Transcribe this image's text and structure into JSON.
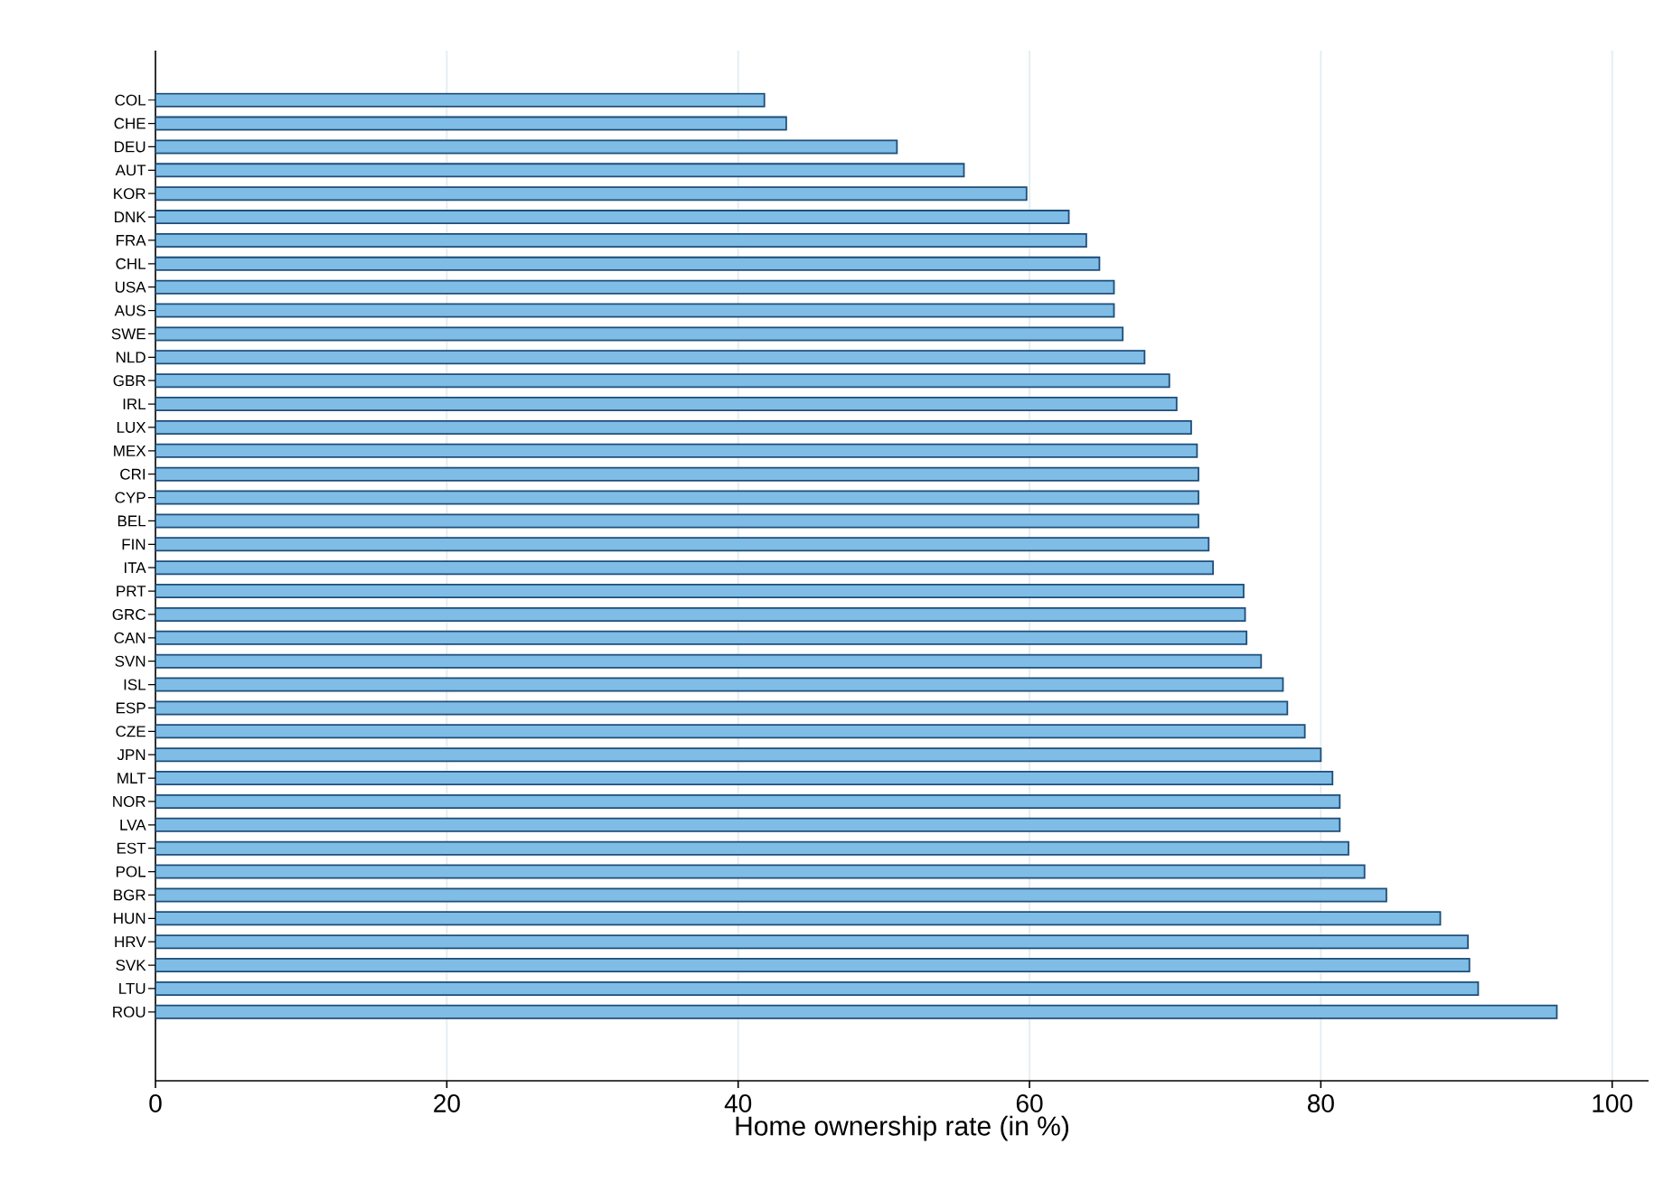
{
  "chart_data": {
    "type": "bar",
    "orientation": "horizontal",
    "categories": [
      "COL",
      "CHE",
      "DEU",
      "AUT",
      "KOR",
      "DNK",
      "FRA",
      "CHL",
      "USA",
      "AUS",
      "SWE",
      "NLD",
      "GBR",
      "IRL",
      "LUX",
      "MEX",
      "CRI",
      "CYP",
      "BEL",
      "FIN",
      "ITA",
      "PRT",
      "GRC",
      "CAN",
      "SVN",
      "ISL",
      "ESP",
      "CZE",
      "JPN",
      "MLT",
      "NOR",
      "LVA",
      "EST",
      "POL",
      "BGR",
      "HUN",
      "HRV",
      "SVK",
      "LTU",
      "ROU"
    ],
    "values": [
      41.8,
      43.3,
      50.9,
      55.5,
      59.8,
      62.7,
      63.9,
      64.8,
      65.8,
      65.8,
      66.4,
      67.9,
      69.6,
      70.1,
      71.1,
      71.5,
      71.6,
      71.6,
      71.6,
      72.3,
      72.6,
      74.7,
      74.8,
      74.9,
      75.9,
      77.4,
      77.7,
      78.9,
      80.0,
      80.8,
      81.3,
      81.3,
      81.9,
      83.0,
      84.5,
      88.2,
      90.1,
      90.2,
      90.8,
      96.2
    ],
    "color": "#7fbde6",
    "xlabel": "Home ownership rate (in %)",
    "xlim": [
      0,
      102.5
    ],
    "xticks": [
      0,
      20,
      40,
      60,
      80,
      100
    ],
    "grid": "x"
  }
}
